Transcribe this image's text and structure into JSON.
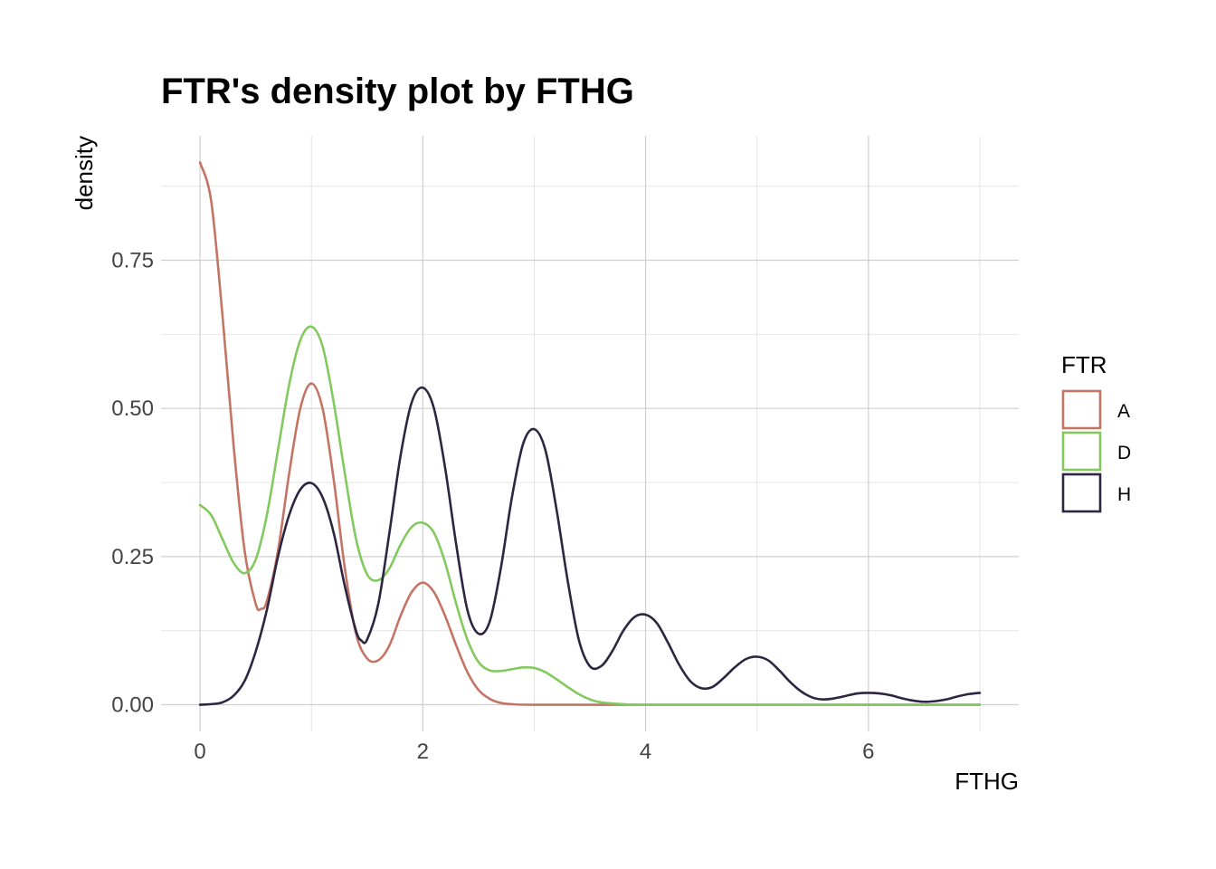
{
  "chart_data": {
    "type": "line",
    "title": "FTR's density plot by FTHG",
    "xlabel": "FTHG",
    "ylabel": "density",
    "xlim": [
      -0.35,
      7.35
    ],
    "ylim": [
      -0.045,
      0.96
    ],
    "x_ticks": [
      0,
      2,
      4,
      6
    ],
    "x_tick_labels": [
      "0",
      "2",
      "4",
      "6"
    ],
    "x_minor": [
      1,
      3,
      5,
      7
    ],
    "y_ticks": [
      0,
      0.25,
      0.5,
      0.75
    ],
    "y_tick_labels": [
      "0.00",
      "0.25",
      "0.50",
      "0.75"
    ],
    "y_minor": [
      0.125,
      0.375,
      0.625,
      0.875
    ],
    "grid": true,
    "legend": {
      "title": "FTR",
      "position": "right",
      "entries": [
        "A",
        "D",
        "H"
      ]
    },
    "series": [
      {
        "name": "A",
        "color": "#c47465",
        "points": [
          [
            0,
            0.915
          ],
          [
            0.1,
            0.85
          ],
          [
            0.2,
            0.66
          ],
          [
            0.3,
            0.44
          ],
          [
            0.4,
            0.26
          ],
          [
            0.5,
            0.17
          ],
          [
            0.55,
            0.162
          ],
          [
            0.6,
            0.175
          ],
          [
            0.7,
            0.26
          ],
          [
            0.8,
            0.39
          ],
          [
            0.9,
            0.5
          ],
          [
            1.0,
            0.542
          ],
          [
            1.1,
            0.5
          ],
          [
            1.2,
            0.38
          ],
          [
            1.3,
            0.23
          ],
          [
            1.4,
            0.12
          ],
          [
            1.5,
            0.078
          ],
          [
            1.6,
            0.075
          ],
          [
            1.7,
            0.1
          ],
          [
            1.8,
            0.15
          ],
          [
            1.9,
            0.19
          ],
          [
            2.0,
            0.206
          ],
          [
            2.1,
            0.19
          ],
          [
            2.2,
            0.15
          ],
          [
            2.3,
            0.1
          ],
          [
            2.4,
            0.055
          ],
          [
            2.5,
            0.025
          ],
          [
            2.6,
            0.01
          ],
          [
            2.7,
            0.003
          ],
          [
            2.8,
            0.001
          ],
          [
            3.0,
            0
          ],
          [
            4.0,
            0
          ],
          [
            5.0,
            0
          ],
          [
            6.0,
            0
          ],
          [
            7.0,
            0
          ]
        ]
      },
      {
        "name": "D",
        "color": "#83c95e",
        "points": [
          [
            0,
            0.337
          ],
          [
            0.1,
            0.32
          ],
          [
            0.2,
            0.28
          ],
          [
            0.3,
            0.24
          ],
          [
            0.4,
            0.222
          ],
          [
            0.5,
            0.245
          ],
          [
            0.6,
            0.32
          ],
          [
            0.7,
            0.43
          ],
          [
            0.8,
            0.54
          ],
          [
            0.9,
            0.615
          ],
          [
            1.0,
            0.638
          ],
          [
            1.1,
            0.605
          ],
          [
            1.2,
            0.51
          ],
          [
            1.3,
            0.39
          ],
          [
            1.4,
            0.28
          ],
          [
            1.5,
            0.22
          ],
          [
            1.6,
            0.21
          ],
          [
            1.7,
            0.23
          ],
          [
            1.8,
            0.27
          ],
          [
            1.9,
            0.3
          ],
          [
            2.0,
            0.307
          ],
          [
            2.1,
            0.29
          ],
          [
            2.2,
            0.24
          ],
          [
            2.3,
            0.17
          ],
          [
            2.4,
            0.11
          ],
          [
            2.5,
            0.072
          ],
          [
            2.6,
            0.058
          ],
          [
            2.7,
            0.057
          ],
          [
            2.8,
            0.06
          ],
          [
            2.9,
            0.063
          ],
          [
            3.0,
            0.062
          ],
          [
            3.1,
            0.055
          ],
          [
            3.2,
            0.043
          ],
          [
            3.3,
            0.03
          ],
          [
            3.4,
            0.018
          ],
          [
            3.5,
            0.009
          ],
          [
            3.6,
            0.004
          ],
          [
            3.8,
            0.001
          ],
          [
            4.0,
            0
          ],
          [
            5.0,
            0
          ],
          [
            6.0,
            0
          ],
          [
            7.0,
            0
          ]
        ]
      },
      {
        "name": "H",
        "color": "#2e2542",
        "points": [
          [
            0,
            0.0
          ],
          [
            0.1,
            0.001
          ],
          [
            0.2,
            0.004
          ],
          [
            0.3,
            0.015
          ],
          [
            0.4,
            0.04
          ],
          [
            0.5,
            0.09
          ],
          [
            0.6,
            0.16
          ],
          [
            0.7,
            0.25
          ],
          [
            0.8,
            0.32
          ],
          [
            0.9,
            0.363
          ],
          [
            1.0,
            0.374
          ],
          [
            1.1,
            0.35
          ],
          [
            1.2,
            0.29
          ],
          [
            1.3,
            0.2
          ],
          [
            1.4,
            0.125
          ],
          [
            1.45,
            0.108
          ],
          [
            1.5,
            0.11
          ],
          [
            1.6,
            0.17
          ],
          [
            1.7,
            0.29
          ],
          [
            1.8,
            0.42
          ],
          [
            1.9,
            0.51
          ],
          [
            2.0,
            0.535
          ],
          [
            2.1,
            0.5
          ],
          [
            2.2,
            0.4
          ],
          [
            2.3,
            0.27
          ],
          [
            2.4,
            0.16
          ],
          [
            2.5,
            0.12
          ],
          [
            2.6,
            0.14
          ],
          [
            2.7,
            0.23
          ],
          [
            2.8,
            0.35
          ],
          [
            2.9,
            0.44
          ],
          [
            3.0,
            0.465
          ],
          [
            3.1,
            0.43
          ],
          [
            3.2,
            0.33
          ],
          [
            3.3,
            0.21
          ],
          [
            3.4,
            0.11
          ],
          [
            3.5,
            0.065
          ],
          [
            3.6,
            0.065
          ],
          [
            3.7,
            0.09
          ],
          [
            3.8,
            0.125
          ],
          [
            3.9,
            0.148
          ],
          [
            4.0,
            0.152
          ],
          [
            4.1,
            0.138
          ],
          [
            4.2,
            0.105
          ],
          [
            4.3,
            0.068
          ],
          [
            4.4,
            0.04
          ],
          [
            4.5,
            0.028
          ],
          [
            4.6,
            0.03
          ],
          [
            4.7,
            0.045
          ],
          [
            4.8,
            0.063
          ],
          [
            4.9,
            0.077
          ],
          [
            5.0,
            0.081
          ],
          [
            5.1,
            0.075
          ],
          [
            5.2,
            0.058
          ],
          [
            5.3,
            0.038
          ],
          [
            5.4,
            0.022
          ],
          [
            5.5,
            0.012
          ],
          [
            5.6,
            0.009
          ],
          [
            5.7,
            0.011
          ],
          [
            5.8,
            0.015
          ],
          [
            5.9,
            0.019
          ],
          [
            6.0,
            0.02
          ],
          [
            6.1,
            0.019
          ],
          [
            6.2,
            0.016
          ],
          [
            6.3,
            0.011
          ],
          [
            6.4,
            0.007
          ],
          [
            6.5,
            0.005
          ],
          [
            6.6,
            0.006
          ],
          [
            6.7,
            0.009
          ],
          [
            6.8,
            0.014
          ],
          [
            6.9,
            0.018
          ],
          [
            7.0,
            0.02
          ]
        ]
      }
    ]
  }
}
